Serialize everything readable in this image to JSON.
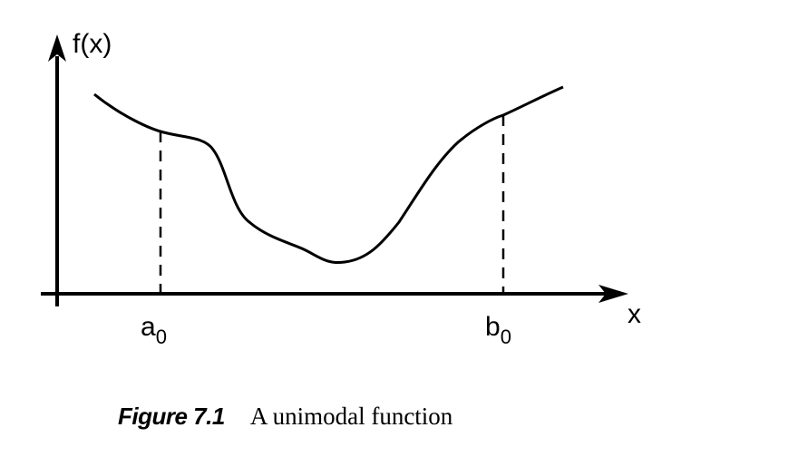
{
  "figure": {
    "y_axis_label": "f(x)",
    "x_axis_label": "x",
    "marker_a": {
      "base": "a",
      "sub": "0"
    },
    "marker_b": {
      "base": "b",
      "sub": "0"
    }
  },
  "caption": {
    "number": "Figure 7.1",
    "title": "A unimodal function"
  }
}
